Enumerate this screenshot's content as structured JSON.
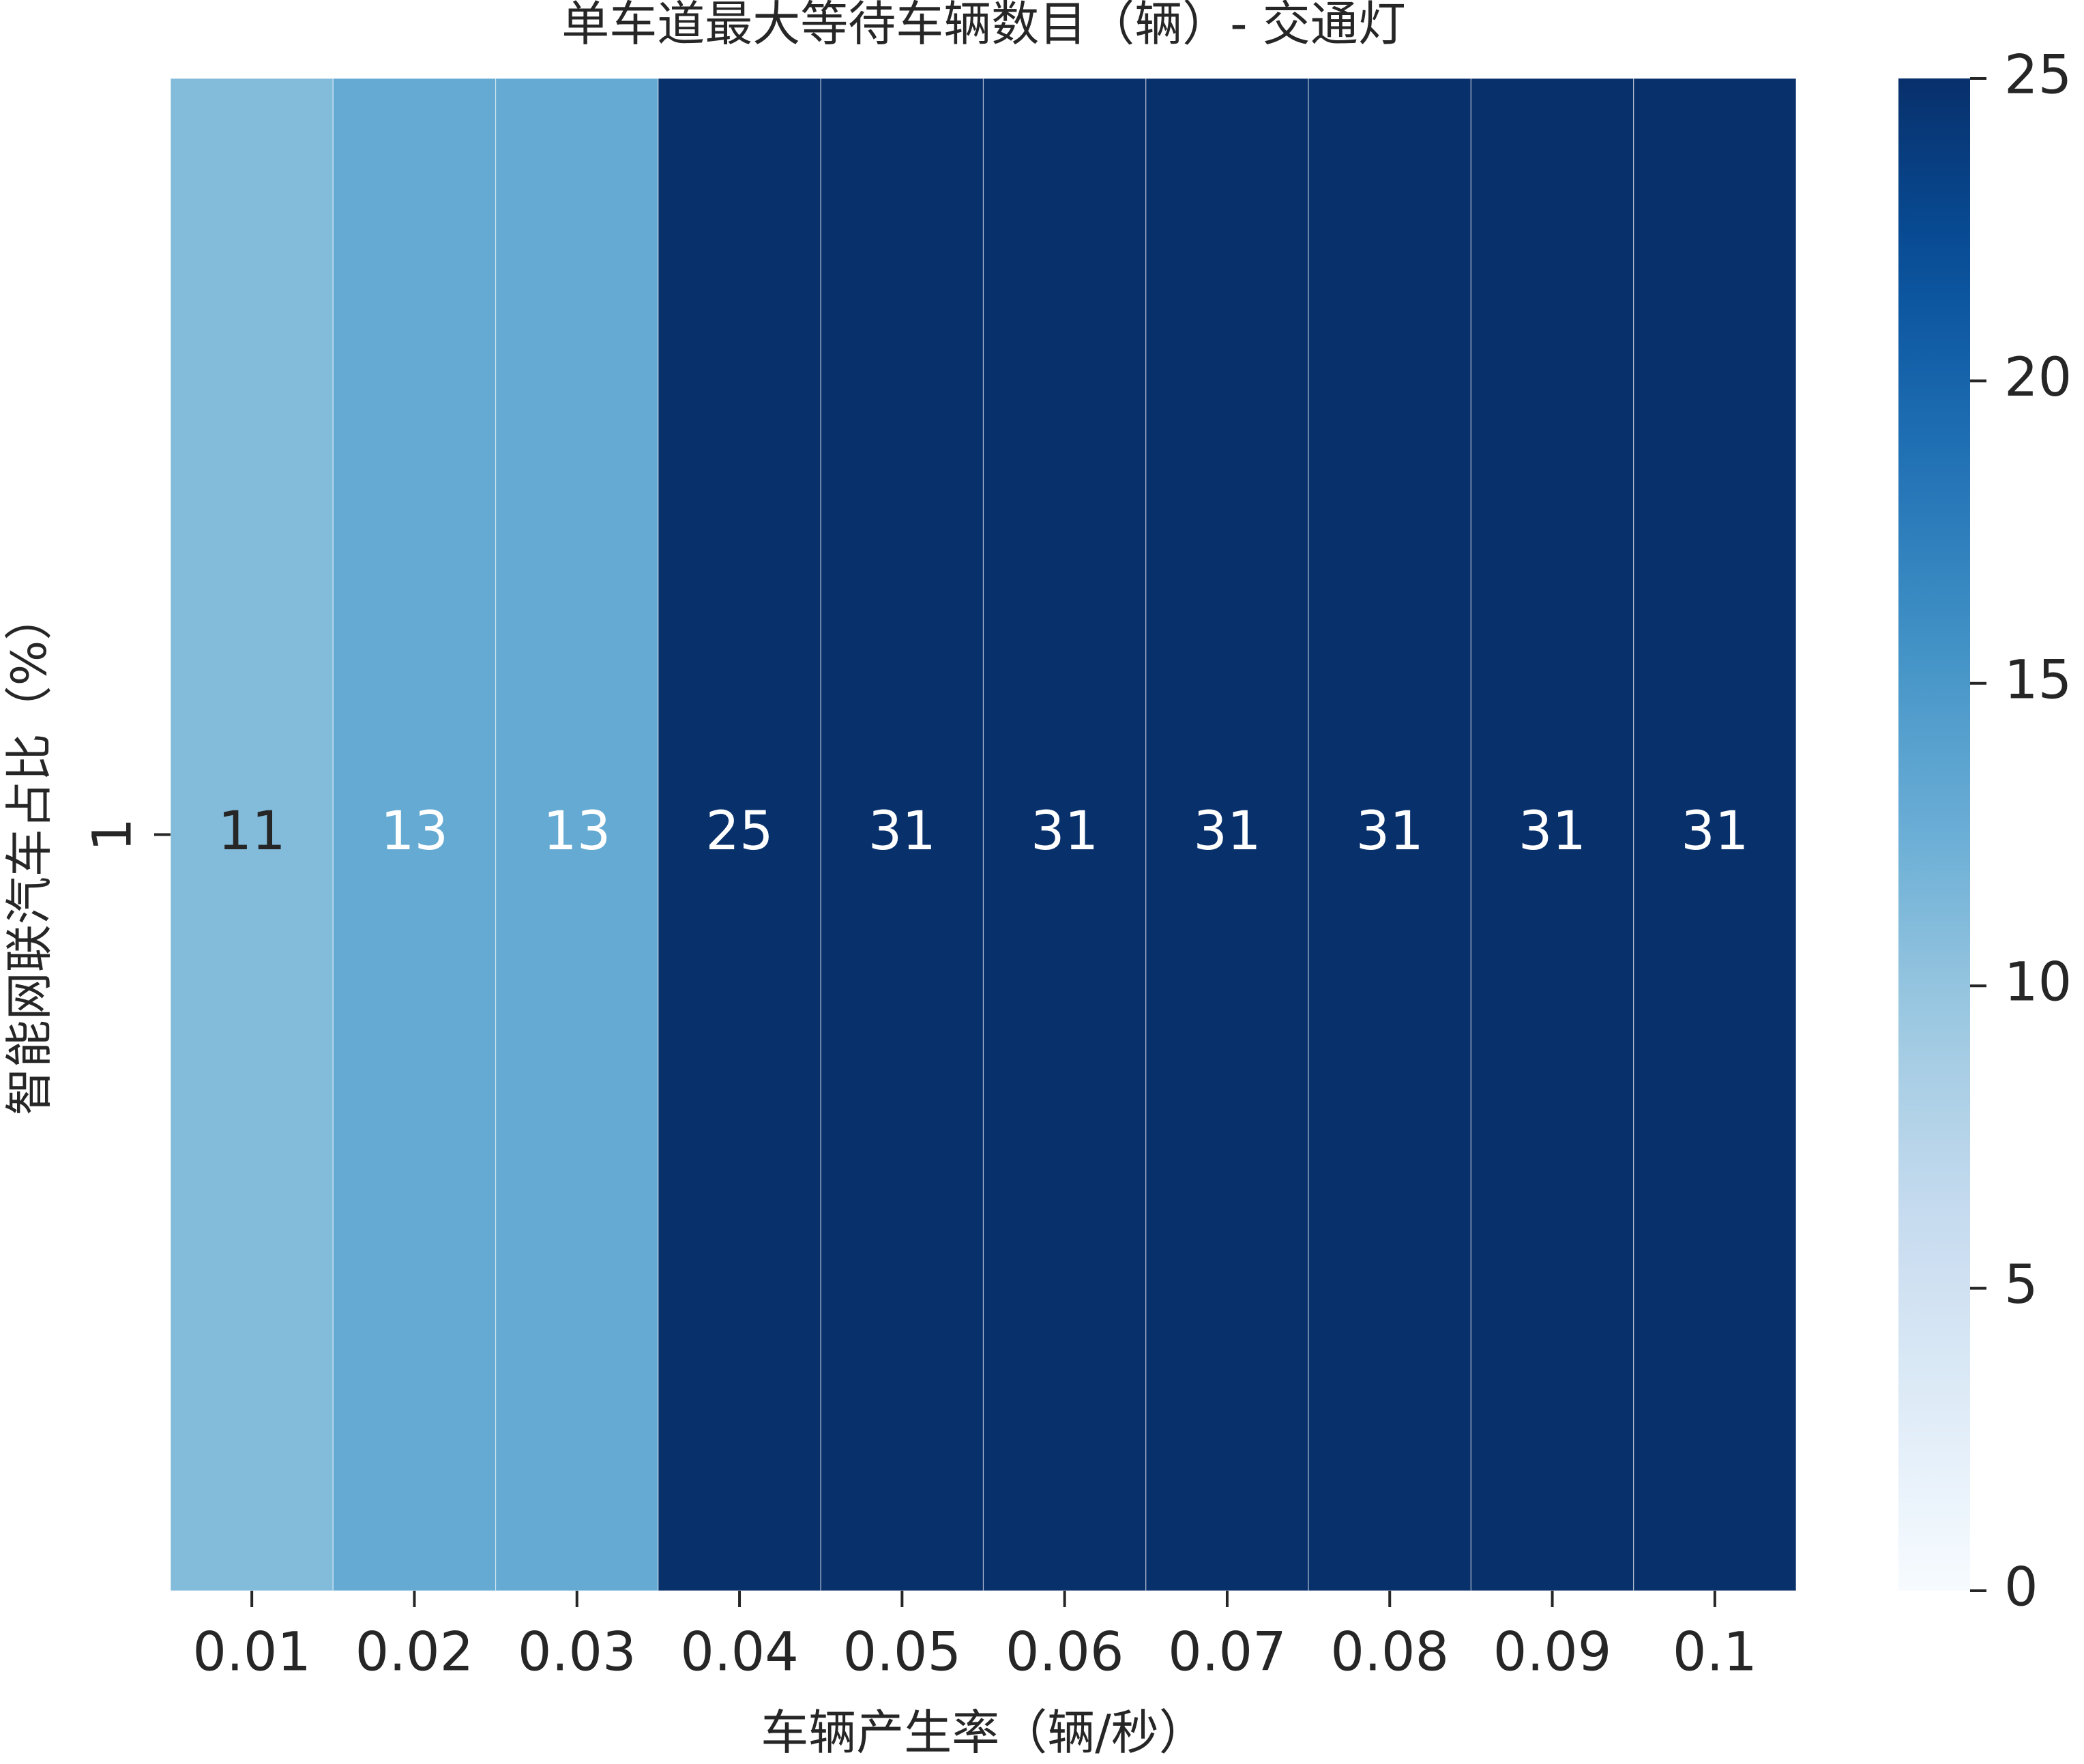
{
  "chart_data": {
    "type": "heatmap",
    "title": "单车道最大等待车辆数目（辆）- 交通灯",
    "xlabel": "车辆产生率（辆/秒）",
    "ylabel": "智能网联汽车占比（%）",
    "x_categories": [
      "0.01",
      "0.02",
      "0.03",
      "0.04",
      "0.05",
      "0.06",
      "0.07",
      "0.08",
      "0.09",
      "0.1"
    ],
    "y_categories": [
      "1"
    ],
    "values": [
      [
        11,
        13,
        13,
        25,
        31,
        31,
        31,
        31,
        31,
        31
      ]
    ],
    "annotations": true,
    "colormap": "Blues",
    "colorbar": {
      "vmin": 0,
      "vmax": 25,
      "ticks": [
        0,
        5,
        10,
        15,
        20,
        25
      ]
    }
  }
}
